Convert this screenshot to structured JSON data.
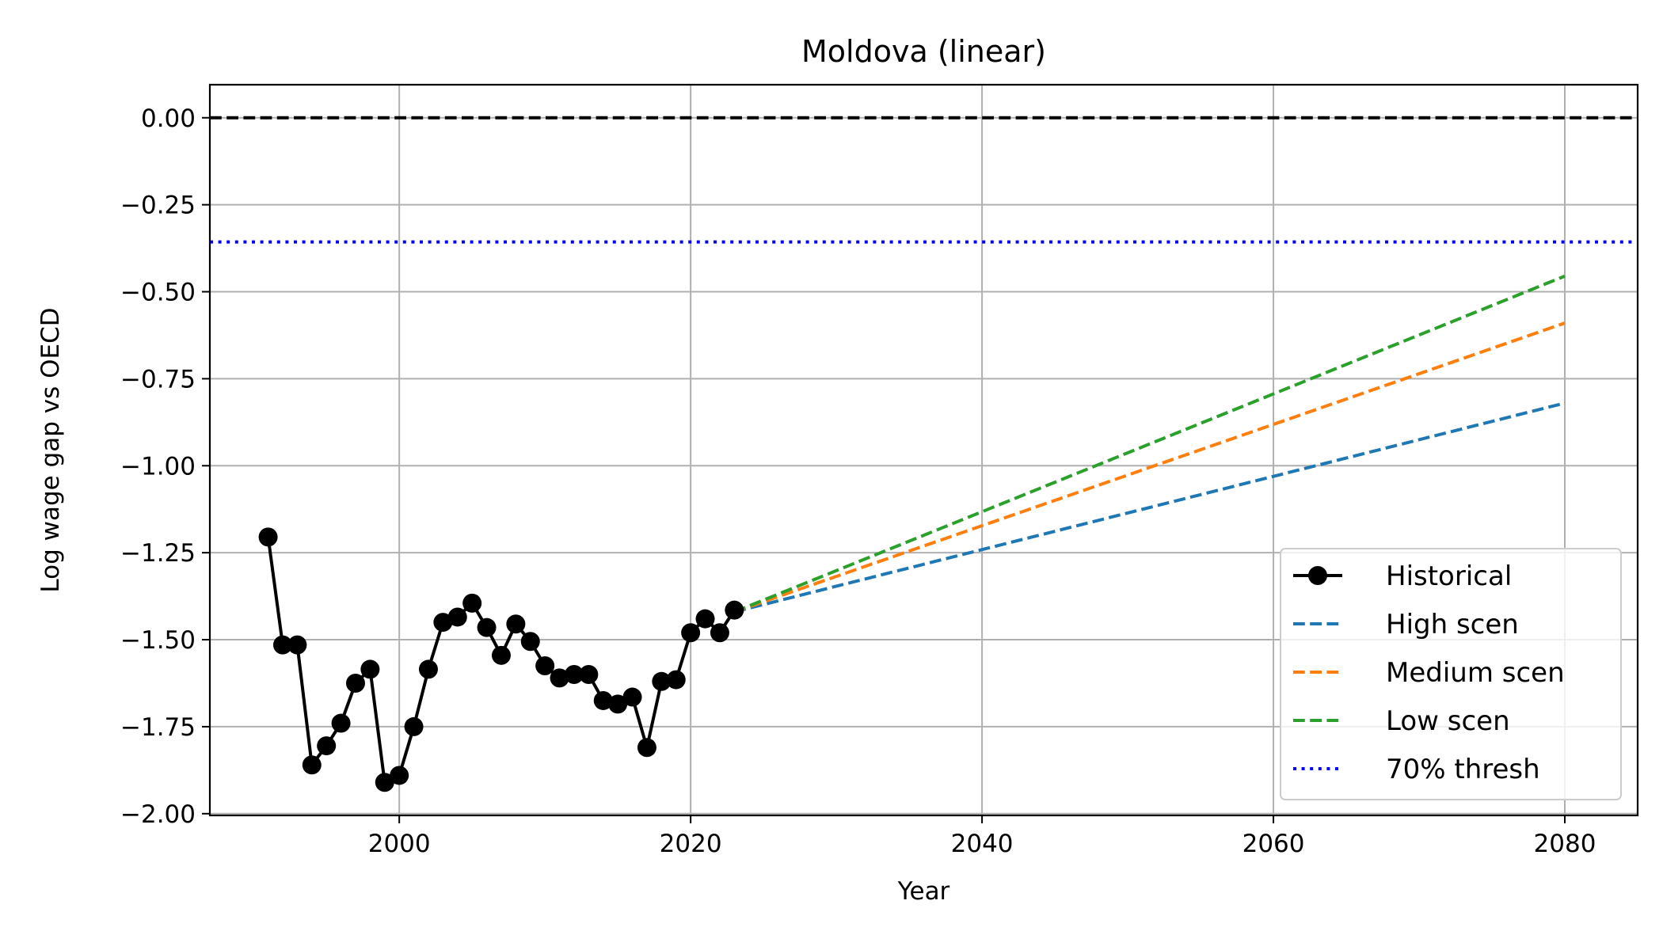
{
  "chart_data": {
    "type": "line",
    "title": "Moldova (linear)",
    "xlabel": "Year",
    "ylabel": "Log wage gap vs OECD",
    "xlim": [
      1987,
      2085
    ],
    "ylim": [
      -2.005,
      0.095
    ],
    "xticks": [
      2000,
      2020,
      2040,
      2060,
      2080
    ],
    "xtick_labels": [
      "2000",
      "2020",
      "2040",
      "2060",
      "2080"
    ],
    "yticks": [
      0.0,
      -0.25,
      -0.5,
      -0.75,
      -1.0,
      -1.25,
      -1.5,
      -1.75,
      -2.0
    ],
    "ytick_labels": [
      "0.00",
      "−0.25",
      "−0.50",
      "−0.75",
      "−1.00",
      "−1.25",
      "−1.50",
      "−1.75",
      "−2.00"
    ],
    "grid": true,
    "legend_position": "lower-right",
    "series": [
      {
        "name": "Historical",
        "color": "#000000",
        "style": "solid-marker",
        "x": [
          1991,
          1992,
          1993,
          1994,
          1995,
          1996,
          1997,
          1998,
          1999,
          2000,
          2001,
          2002,
          2003,
          2004,
          2005,
          2006,
          2007,
          2008,
          2009,
          2010,
          2011,
          2012,
          2013,
          2014,
          2015,
          2016,
          2017,
          2018,
          2019,
          2020,
          2021,
          2022,
          2023
        ],
        "y": [
          -1.205,
          -1.515,
          -1.515,
          -1.86,
          -1.805,
          -1.74,
          -1.625,
          -1.585,
          -1.91,
          -1.89,
          -1.75,
          -1.585,
          -1.45,
          -1.435,
          -1.395,
          -1.465,
          -1.545,
          -1.455,
          -1.505,
          -1.575,
          -1.61,
          -1.6,
          -1.6,
          -1.675,
          -1.685,
          -1.665,
          -1.81,
          -1.62,
          -1.615,
          -1.48,
          -1.44,
          -1.48,
          -1.415
        ]
      },
      {
        "name": "High scen",
        "color": "#1f77b4",
        "style": "dashed",
        "x": [
          2023,
          2080
        ],
        "y": [
          -1.42,
          -0.82
        ]
      },
      {
        "name": "Medium scen",
        "color": "#ff7f0e",
        "style": "dashed",
        "x": [
          2023,
          2080
        ],
        "y": [
          -1.42,
          -0.59
        ]
      },
      {
        "name": "Low scen",
        "color": "#2ca02c",
        "style": "dashed",
        "x": [
          2023,
          2080
        ],
        "y": [
          -1.42,
          -0.455
        ]
      }
    ],
    "hlines": [
      {
        "name": "",
        "y": 0.0,
        "color": "#000000",
        "style": "dashed"
      },
      {
        "name": "70% thresh",
        "y": -0.357,
        "color": "#0000ff",
        "style": "dotted"
      }
    ],
    "legend": [
      "Historical",
      "High scen",
      "Medium scen",
      "Low scen",
      "70% thresh"
    ]
  }
}
